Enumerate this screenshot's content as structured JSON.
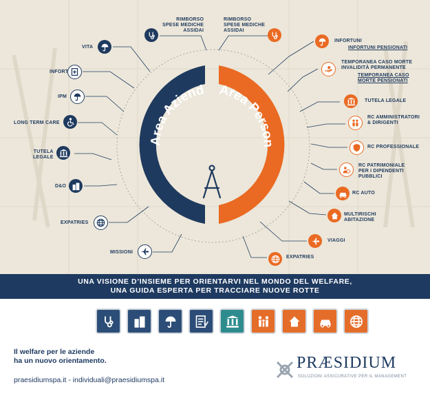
{
  "center": {
    "left_area": "Area Aziende",
    "right_area": "Area Persona"
  },
  "colors": {
    "navy": "#1f3a5f",
    "orange": "#ea6a23",
    "teal": "#2f8c8e",
    "beige": "#ece7da"
  },
  "left_items": [
    {
      "label": "RIMBORSO\nSPESE MEDICHE\nASSIDAI",
      "icon": "stethoscope-icon"
    },
    {
      "label": "VITA",
      "icon": "umbrella-icon"
    },
    {
      "label": "INFORTUNI",
      "icon": "medical-report-icon"
    },
    {
      "label": "IPM",
      "icon": "umbrella-icon"
    },
    {
      "label": "LONG TERM CARE",
      "icon": "wheelchair-icon"
    },
    {
      "label": "TUTELA\nLEGALE",
      "icon": "courthouse-icon"
    },
    {
      "label": "D&O",
      "icon": "buildings-icon"
    },
    {
      "label": "EXPATRIES",
      "icon": "globe-icon"
    },
    {
      "label": "MISSIONI",
      "icon": "airplane-icon"
    }
  ],
  "right_items": [
    {
      "label": "RIMBORSO\nSPESE MEDICHE\nASSIDAI",
      "icon": "stethoscope-icon"
    },
    {
      "label": "INFORTUNI",
      "sub": "INFORTUNI PENSIONATI",
      "icon": "umbrella-icon"
    },
    {
      "label": "TEMPORANEA CASO MORTE\nINVALIDITÀ PERMANENTE",
      "sub": "TEMPORANEA CASO\nMORTE PENSIONATI",
      "icon": "hand-icon"
    },
    {
      "label": "TUTELA LEGALE",
      "icon": "courthouse-icon"
    },
    {
      "label": "RC AMMINISTRATORI\n& DIRIGENTI",
      "icon": "people-icon"
    },
    {
      "label": "RC PROFESSIONALE",
      "icon": "shield-icon"
    },
    {
      "label": "RC PATRIMONIALE\nPER I DIPENDENTI\nPUBBLICI",
      "icon": "people-circle-icon"
    },
    {
      "label": "RC AUTO",
      "icon": "car-icon"
    },
    {
      "label": "MULTIRISCHI\nABITAZIONE",
      "icon": "house-icon"
    },
    {
      "label": "VIAGGI",
      "icon": "airplane-icon"
    },
    {
      "label": "EXPATRIES",
      "icon": "globe-icon"
    }
  ],
  "banner": {
    "line1": "UNA VISIONE D’INSIEME PER ORIENTARVI NEL MONDO DEL WELFARE,",
    "line2": "UNA GUIDA ESPERTA PER TRACCIARE NUOVE ROTTE"
  },
  "icon_row": [
    {
      "icon": "stethoscope-icon",
      "color": "navy"
    },
    {
      "icon": "buildings-icon",
      "color": "navy"
    },
    {
      "icon": "umbrella-icon",
      "color": "navy"
    },
    {
      "icon": "checklist-icon",
      "color": "navy"
    },
    {
      "icon": "courthouse-icon",
      "color": "teal"
    },
    {
      "icon": "family-icon",
      "color": "orange"
    },
    {
      "icon": "house-icon",
      "color": "orange"
    },
    {
      "icon": "car-icon",
      "color": "orange"
    },
    {
      "icon": "globe-icon",
      "color": "orange"
    }
  ],
  "tagline": {
    "line1": "Il welfare per le aziende",
    "line2": "ha un nuovo orientamento."
  },
  "contacts": "praesidiumspa.it - individuali@praesidiumspa.it",
  "logo": {
    "name": "PRÆSIDIUM",
    "subtitle": "SOLUZIONI ASSICURATIVE PER IL MANAGEMENT"
  }
}
